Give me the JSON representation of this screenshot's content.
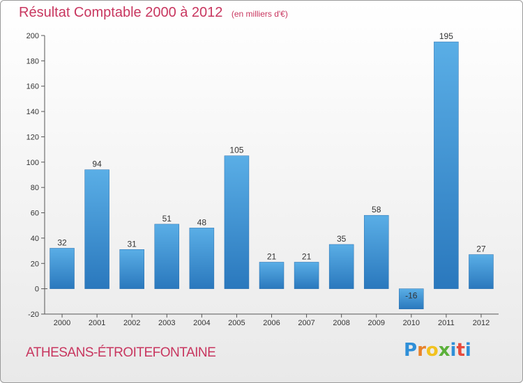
{
  "header": {
    "title": "Résultat Comptable 2000 à 2012",
    "subtitle": "(en milliers d'€)"
  },
  "footer": {
    "commune": "ATHESANS-ÉTROITEFONTAINE",
    "logo_text": "Proxiti",
    "logo_colors": [
      "#2f8fd8",
      "#e8822a",
      "#f2c21f",
      "#5bb03a",
      "#2f8fd8",
      "#e84a3c",
      "#2f8fd8"
    ]
  },
  "chart_data": {
    "type": "bar",
    "categories": [
      "2000",
      "2001",
      "2002",
      "2003",
      "2004",
      "2005",
      "2006",
      "2007",
      "2008",
      "2009",
      "2010",
      "2011",
      "2012"
    ],
    "values": [
      32,
      94,
      31,
      51,
      48,
      105,
      21,
      21,
      35,
      58,
      -16,
      195,
      27
    ],
    "ylim": [
      -20,
      200
    ],
    "yticks": [
      -20,
      0,
      20,
      40,
      60,
      80,
      100,
      120,
      140,
      160,
      180,
      200
    ],
    "grid": false,
    "bar_color_light": "#5aaee6",
    "bar_color_dark": "#2a78bd"
  }
}
